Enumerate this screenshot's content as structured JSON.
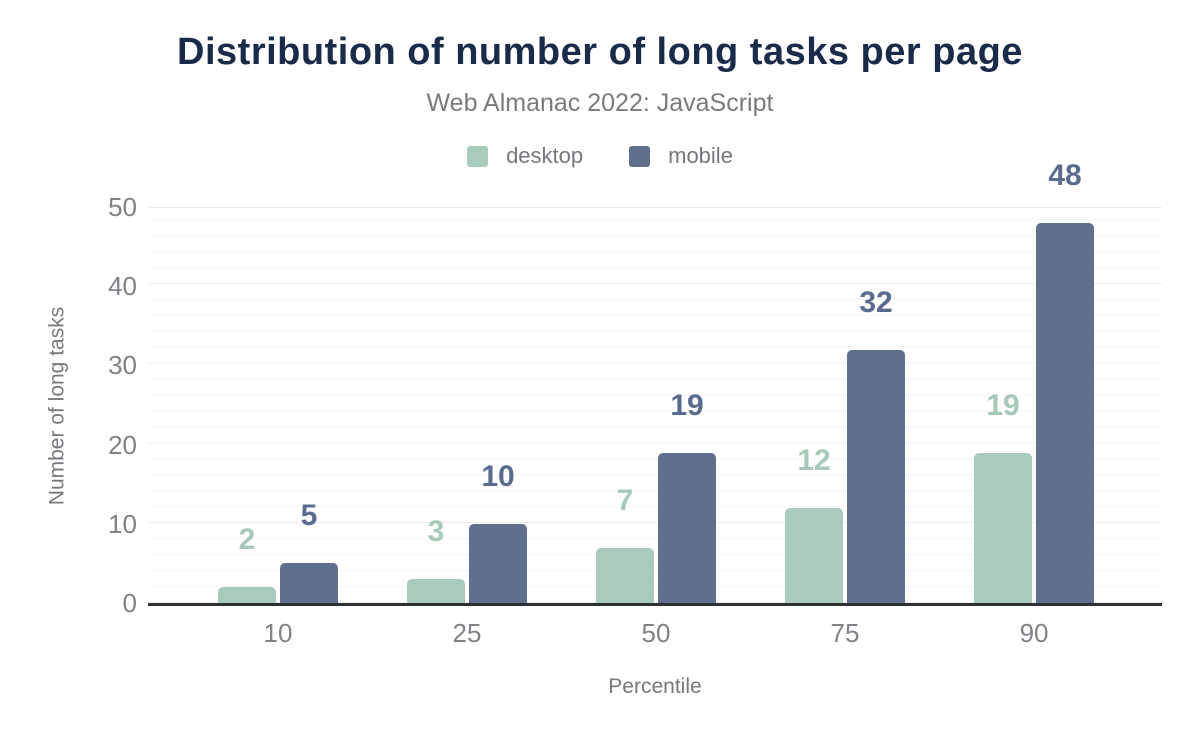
{
  "header": {
    "title": "Distribution of number of long tasks per page",
    "subtitle": "Web Almanac 2022: JavaScript"
  },
  "chart_data": {
    "type": "bar",
    "title": "Distribution of number of long tasks per page",
    "subtitle": "Web Almanac 2022: JavaScript",
    "categories": [
      "10",
      "25",
      "50",
      "75",
      "90"
    ],
    "series": [
      {
        "name": "desktop",
        "color": "#a8cbbb",
        "label_color": "#a6c9b8",
        "values": [
          2,
          3,
          7,
          12,
          19
        ]
      },
      {
        "name": "mobile",
        "color": "#60708c",
        "label_color": "#5a6c8e",
        "values": [
          5,
          10,
          19,
          32,
          48
        ]
      }
    ],
    "xlabel": "Percentile",
    "ylabel": "Number of long tasks",
    "ylim": [
      0,
      50
    ],
    "yticks": [
      0,
      10,
      20,
      30,
      40,
      50
    ],
    "grid": "horizontal, minor every 2 units, major every 10 units",
    "legend_position": "top-center",
    "value_labels": true
  },
  "colors": {
    "background": "#ffffff",
    "title_text": "#1a2b4a",
    "subtitle_text": "#797b7e",
    "legend_text": "#74777c",
    "tick_text": "#7f8287",
    "axis_title_text": "#75787c",
    "axis_line": "#2e3133",
    "grid_major": "#ececee",
    "grid_minor": "#f5f5f6"
  }
}
